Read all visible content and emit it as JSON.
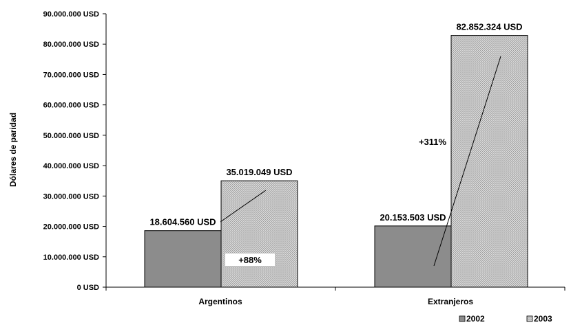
{
  "chart_data": {
    "type": "bar",
    "ylabel": "Dólares de paridad",
    "ylim": [
      0,
      90000000
    ],
    "yticks": [
      0,
      10000000,
      20000000,
      30000000,
      40000000,
      50000000,
      60000000,
      70000000,
      80000000,
      90000000
    ],
    "ytick_labels": [
      "0 USD",
      "10.000.000 USD",
      "20.000.000 USD",
      "30.000.000 USD",
      "40.000.000 USD",
      "50.000.000 USD",
      "60.000.000 USD",
      "70.000.000 USD",
      "80.000.000 USD",
      "90.000.000 USD"
    ],
    "categories": [
      "Argentinos",
      "Extranjeros"
    ],
    "series": [
      {
        "name": "2002",
        "values": [
          18604560,
          20153503
        ],
        "labels": [
          "18.604.560 USD",
          "20.153.503 USD"
        ],
        "color": "#8c8c8c"
      },
      {
        "name": "2003",
        "values": [
          35019049,
          82852324
        ],
        "labels": [
          "35.019.049 USD",
          "82.852.324 USD"
        ],
        "color": "#d4d4d4",
        "pattern": "crosshatch"
      }
    ],
    "annotations": [
      "+88%",
      "+311%"
    ],
    "legend": "bottom-right",
    "grid": false
  }
}
